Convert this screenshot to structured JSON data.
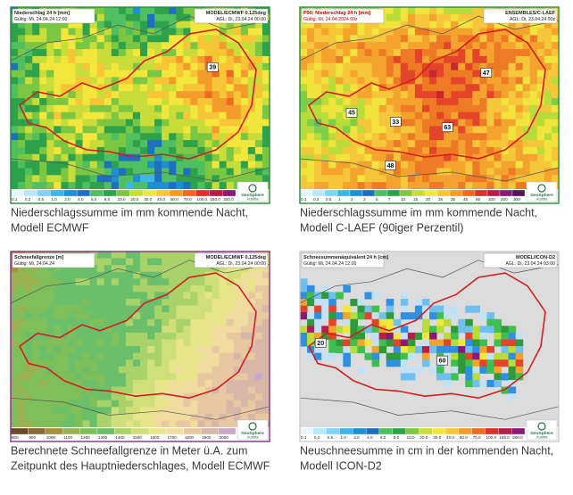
{
  "panels": [
    {
      "header": {
        "title": "Niederschlag 24 h [mm]",
        "valid": "Gültig: Mi, 24.04.24 12:00",
        "model": "MODEL/ECMWF 0.125deg",
        "run": "AGL: Di, 23.04.24 00:00"
      },
      "legend": [
        "0.1",
        "0.2",
        "0.5",
        "1.0",
        "2.0",
        "4.0",
        "6.0",
        "8.0",
        "10.0",
        "20.0",
        "30.0",
        "40.0",
        "50.0",
        "70.0",
        "100.0",
        "150.0",
        "300.0"
      ],
      "markers": [
        "39"
      ],
      "caption": [
        "Niederschlagssumme im mm kommende Nacht,",
        "Modell ECMWF"
      ],
      "logo": [
        "GeoSphere",
        "Austria"
      ]
    },
    {
      "header": {
        "title": "P90: Niederschlag 24 h [mm]",
        "valid": "Gültig: Mi, 24.04.2024 09z",
        "model": "ENSEMBLES/C-LAEF",
        "run": "AGL: Di, 23.04.24 00z"
      },
      "legend": [
        "0.1",
        "0.2",
        "0.5",
        "1",
        "2",
        "3",
        "5",
        "7",
        "10",
        "15",
        "20",
        "25",
        "35",
        "45",
        "55",
        "100",
        "200",
        "300"
      ],
      "markers": [
        "47",
        "45",
        "33",
        "63",
        "48"
      ],
      "caption": [
        "Niederschlagssumme im mm kommende Nacht,",
        "Modell C-LAEF (90iger Perzentil)"
      ],
      "logo": [
        "GeoSphere",
        "Austria"
      ]
    },
    {
      "header": {
        "title": "Schneefallgrenze [m]",
        "valid": "Gültig: Mi, 24.04.24",
        "model": "MODEL/ECMWF 0.125deg",
        "run": "AGL: Di, 23.04.24 00:00"
      },
      "legend": [
        "800",
        "900",
        "1000",
        "1100",
        "1200",
        "1300",
        "1400",
        "1500",
        "1600",
        "1700",
        "1800",
        "1900",
        "2000"
      ],
      "markers": [],
      "caption": [
        "Berechnete Schneefallgrenze in Meter ü.A. zum",
        "Zeitpunkt des Hauptniederschlages, Modell ECMWF"
      ],
      "logo": [
        "GeoSphere",
        "Austria"
      ]
    },
    {
      "header": {
        "title": "Schneesummenäquivalent 24 h [cm]",
        "valid": "Gültig: Mi, 24.04.24 12:00",
        "model": "MODEL/ICON-D2",
        "run": "AGL: Di, 23.04.24 03:00"
      },
      "legend": [
        "0.1",
        "0.2",
        "0.5",
        "1.0",
        "2.0",
        "4.0",
        "6.0",
        "8.0",
        "10.0",
        "20.0",
        "30.0",
        "40.0",
        "50.0",
        "70.0",
        "100.0",
        "150.0",
        "300.0"
      ],
      "markers": [
        "20",
        "60"
      ],
      "caption": [
        "Neuschneesumme in cm in der kommenden Nacht,",
        "Modell ICON-D2"
      ],
      "logo": [
        "GeoSphere",
        "Austria"
      ]
    }
  ]
}
